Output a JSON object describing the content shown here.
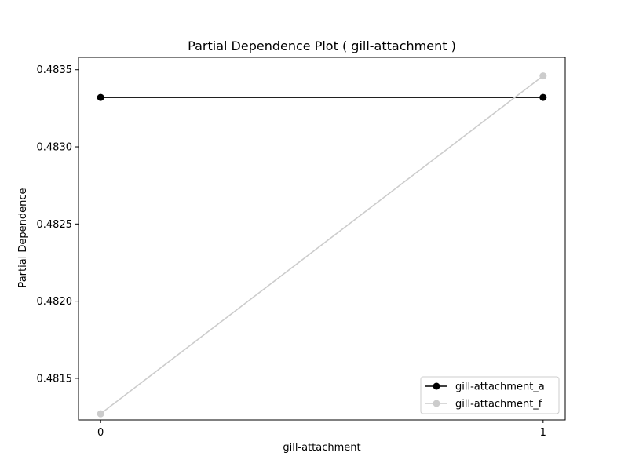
{
  "chart_data": {
    "type": "line",
    "title": "Partial Dependence Plot ( gill-attachment )",
    "xlabel": "gill-attachment",
    "ylabel": "Partial Dependence",
    "x": [
      0,
      1
    ],
    "xticks": [
      "0",
      "1"
    ],
    "xlim": [
      -0.05,
      1.05
    ],
    "ylim": [
      0.48123,
      0.48358
    ],
    "yticks": [
      "0.4815",
      "0.4820",
      "0.4825",
      "0.4830",
      "0.4835"
    ],
    "grid": false,
    "legend_position": "lower right",
    "series": [
      {
        "name": "gill-attachment_a",
        "color": "#000000",
        "values": [
          0.48332,
          0.48332
        ]
      },
      {
        "name": "gill-attachment_f",
        "color": "#cccccc",
        "values": [
          0.48127,
          0.48346
        ]
      }
    ]
  }
}
